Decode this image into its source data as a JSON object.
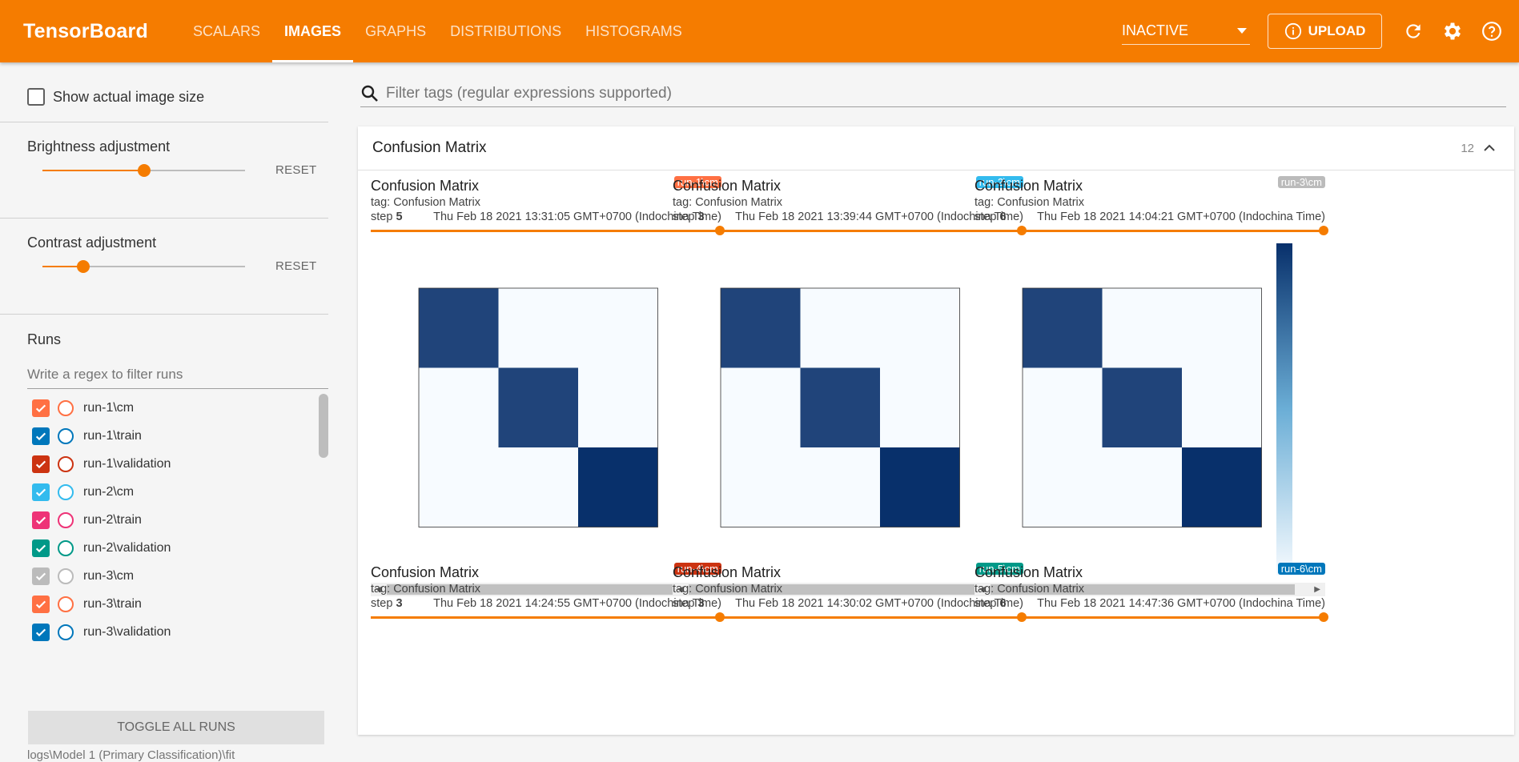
{
  "header": {
    "brand": "TensorBoard",
    "tabs": [
      "SCALARS",
      "IMAGES",
      "GRAPHS",
      "DISTRIBUTIONS",
      "HISTOGRAMS"
    ],
    "active_tab": "IMAGES",
    "run_status": "INACTIVE",
    "upload_label": "UPLOAD",
    "accent_color": "#f57c00"
  },
  "sidebar": {
    "show_actual_size_label": "Show actual image size",
    "brightness": {
      "title": "Brightness adjustment",
      "value": 0.5,
      "reset_label": "RESET"
    },
    "contrast": {
      "title": "Contrast adjustment",
      "value": 0.2,
      "reset_label": "RESET"
    },
    "runs_title": "Runs",
    "runs_filter_placeholder": "Write a regex to filter runs",
    "runs": [
      {
        "name": "run-1\\cm",
        "color": "#ff7043"
      },
      {
        "name": "run-1\\train",
        "color": "#0077bb"
      },
      {
        "name": "run-1\\validation",
        "color": "#cc3311"
      },
      {
        "name": "run-2\\cm",
        "color": "#33bbee"
      },
      {
        "name": "run-2\\train",
        "color": "#ee3377"
      },
      {
        "name": "run-2\\validation",
        "color": "#009988"
      },
      {
        "name": "run-3\\cm",
        "color": "#bbbbbb"
      },
      {
        "name": "run-3\\train",
        "color": "#ff7043"
      },
      {
        "name": "run-3\\validation",
        "color": "#0077bb"
      }
    ],
    "toggle_all_label": "TOGGLE ALL RUNS",
    "logdir": "logs\\Model 1 (Primary Classification)\\fit"
  },
  "main": {
    "tag_filter_placeholder": "Filter tags (regular expressions supported)",
    "card": {
      "title": "Confusion Matrix",
      "count": "12",
      "panes": [
        {
          "title": "Confusion Matrix",
          "tag": "tag: Confusion Matrix",
          "step_label": "step",
          "step": "5",
          "time": "Thu Feb 18 2021 13:31:05 GMT+0700 (Indochina Time)",
          "run": "run-1\\cm",
          "run_color": "#ff7043",
          "matrix": [
            [
              0.9,
              0.0,
              0.0
            ],
            [
              0.0,
              0.9,
              0.0
            ],
            [
              0.0,
              0.0,
              1.0
            ]
          ]
        },
        {
          "title": "Confusion Matrix",
          "tag": "tag: Confusion Matrix",
          "step_label": "step",
          "step": "3",
          "time": "Thu Feb 18 2021 13:39:44 GMT+0700 (Indochina Time)",
          "run": "run-2\\cm",
          "run_color": "#33bbee",
          "matrix": [
            [
              0.9,
              0.0,
              0.0
            ],
            [
              0.0,
              0.9,
              0.0
            ],
            [
              0.0,
              0.0,
              1.0
            ]
          ]
        },
        {
          "title": "Confusion Matrix",
          "tag": "tag: Confusion Matrix",
          "step_label": "step",
          "step": "6",
          "time": "Thu Feb 18 2021 14:04:21 GMT+0700 (Indochina Time)",
          "run": "run-3\\cm",
          "run_color": "#bbbbbb",
          "matrix": [
            [
              0.9,
              0.0,
              0.0
            ],
            [
              0.0,
              0.9,
              0.0
            ],
            [
              0.0,
              0.0,
              1.0
            ]
          ]
        },
        {
          "title": "Confusion Matrix",
          "tag": "tag: Confusion Matrix",
          "step_label": "step",
          "step": "3",
          "time": "Thu Feb 18 2021 14:24:55 GMT+0700 (Indochina Time)",
          "run": "run-4\\cm",
          "run_color": "#cc3311"
        },
        {
          "title": "Confusion Matrix",
          "tag": "tag: Confusion Matrix",
          "step_label": "step",
          "step": "3",
          "time": "Thu Feb 18 2021 14:30:02 GMT+0700 (Indochina Time)",
          "run": "run-5\\cm",
          "run_color": "#009988"
        },
        {
          "title": "Confusion Matrix",
          "tag": "tag: Confusion Matrix",
          "step_label": "step",
          "step": "6",
          "time": "Thu Feb 18 2021 14:47:36 GMT+0700 (Indochina Time)",
          "run": "run-6\\cm",
          "run_color": "#0077bb"
        }
      ]
    }
  }
}
